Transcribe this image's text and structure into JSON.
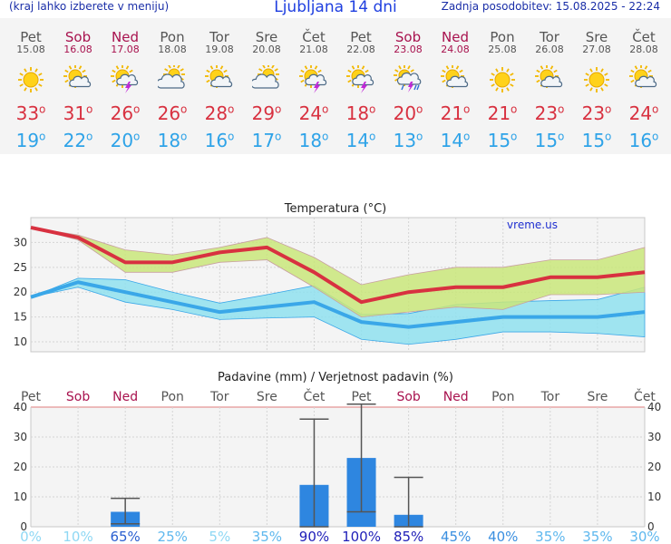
{
  "header": {
    "left_note": "(kraj lahko izberete v meniju)",
    "title": "Ljubljana 14 dni",
    "updated": "Zadnja posodobitev: 15.08.2025 - 22:24"
  },
  "days": [
    {
      "name": "Pet",
      "date": "15.08",
      "weekend": false,
      "icon": "sun-icon",
      "max": "33",
      "min": "19"
    },
    {
      "name": "Sob",
      "date": "16.08",
      "weekend": true,
      "icon": "sun-cloud-icon",
      "max": "31",
      "min": "22"
    },
    {
      "name": "Ned",
      "date": "17.08",
      "weekend": true,
      "icon": "sun-cloud-storm-icon",
      "max": "26",
      "min": "20"
    },
    {
      "name": "Pon",
      "date": "18.08",
      "weekend": false,
      "icon": "cloud-sun-icon",
      "max": "26",
      "min": "18"
    },
    {
      "name": "Tor",
      "date": "19.08",
      "weekend": false,
      "icon": "sun-cloud-icon",
      "max": "28",
      "min": "16"
    },
    {
      "name": "Sre",
      "date": "20.08",
      "weekend": false,
      "icon": "cloud-sun-icon",
      "max": "29",
      "min": "17"
    },
    {
      "name": "Čet",
      "date": "21.08",
      "weekend": false,
      "icon": "sun-cloud-storm-icon",
      "max": "24",
      "min": "18"
    },
    {
      "name": "Pet",
      "date": "22.08",
      "weekend": false,
      "icon": "sun-cloud-storm-icon",
      "max": "18",
      "min": "14"
    },
    {
      "name": "Sob",
      "date": "23.08",
      "weekend": true,
      "icon": "sun-cloud-rain-storm-icon",
      "max": "20",
      "min": "13"
    },
    {
      "name": "Ned",
      "date": "24.08",
      "weekend": true,
      "icon": "sun-cloud-icon",
      "max": "21",
      "min": "14"
    },
    {
      "name": "Pon",
      "date": "25.08",
      "weekend": false,
      "icon": "sun-icon",
      "max": "21",
      "min": "15"
    },
    {
      "name": "Tor",
      "date": "26.08",
      "weekend": false,
      "icon": "sun-cloud-icon",
      "max": "23",
      "min": "15"
    },
    {
      "name": "Sre",
      "date": "27.08",
      "weekend": false,
      "icon": "sun-icon",
      "max": "23",
      "min": "15"
    },
    {
      "name": "Čet",
      "date": "28.08",
      "weekend": false,
      "icon": "sun-cloud-icon",
      "max": "24",
      "min": "16"
    }
  ],
  "colors": {
    "max_line": "#d83140",
    "min_line": "#3aa7e8",
    "max_band": "#c9e67a",
    "min_band": "#8fe0ef",
    "bar": "#2e86e0",
    "weekend": "#a8124e",
    "weekday": "#555555"
  },
  "chart_data": [
    {
      "type": "line",
      "title": "Temperatura (°C)",
      "watermark": "vreme.us",
      "ylim": [
        8,
        35
      ],
      "yticks": [
        10,
        15,
        20,
        25,
        30
      ],
      "categories": [
        "Pet",
        "Sob",
        "Ned",
        "Pon",
        "Tor",
        "Sre",
        "Čet",
        "Pet",
        "Sob",
        "Ned",
        "Pon",
        "Tor",
        "Sre",
        "Čet"
      ],
      "series": [
        {
          "values": [
            33,
            31,
            26,
            26,
            28,
            29,
            24,
            18,
            20,
            21,
            21,
            23,
            23,
            24
          ],
          "band_low": [
            33,
            30.5,
            24,
            24,
            26,
            26.5,
            21,
            15,
            16,
            17,
            16.5,
            19.5,
            19.5,
            20
          ],
          "band_high": [
            33,
            31.5,
            28.5,
            27.5,
            29,
            31,
            27,
            21.5,
            23.5,
            25,
            25,
            26.5,
            26.5,
            29
          ]
        },
        {
          "values": [
            19,
            22,
            20,
            18,
            16,
            17,
            18,
            14,
            13,
            14,
            15,
            15,
            15,
            16
          ],
          "band_low": [
            19,
            21,
            18,
            16.5,
            14.5,
            14.8,
            15,
            10.5,
            9.5,
            10.5,
            12,
            12,
            11.7,
            11
          ],
          "band_high": [
            19,
            22.8,
            22.5,
            20,
            17.8,
            19.5,
            21.3,
            15.5,
            15.7,
            17.5,
            18,
            18.3,
            18.5,
            21
          ]
        }
      ]
    },
    {
      "type": "bar",
      "title": "Padavine (mm) / Verjetnost padavin (%)",
      "ylim": [
        0,
        40
      ],
      "yticks": [
        0,
        10,
        20,
        30,
        40
      ],
      "categories": [
        "Pet",
        "Sob",
        "Ned",
        "Pon",
        "Tor",
        "Sre",
        "Čet",
        "Pet",
        "Sob",
        "Ned",
        "Pon",
        "Tor",
        "Sre",
        "Čet"
      ],
      "values": [
        0,
        0,
        5,
        0,
        0,
        0,
        14,
        23,
        4,
        0,
        0,
        0,
        0,
        0
      ],
      "err_low": [
        0,
        0,
        1,
        0,
        0,
        0,
        0,
        5,
        0,
        0,
        0,
        0,
        0,
        0
      ],
      "err_high": [
        0,
        0,
        9.5,
        0,
        0,
        0,
        36,
        41,
        16.5,
        0,
        0,
        0,
        0,
        0
      ],
      "probability": [
        "0%",
        "10%",
        "65%",
        "25%",
        "5%",
        "35%",
        "90%",
        "100%",
        "85%",
        "45%",
        "40%",
        "35%",
        "35%",
        "30%"
      ]
    }
  ]
}
